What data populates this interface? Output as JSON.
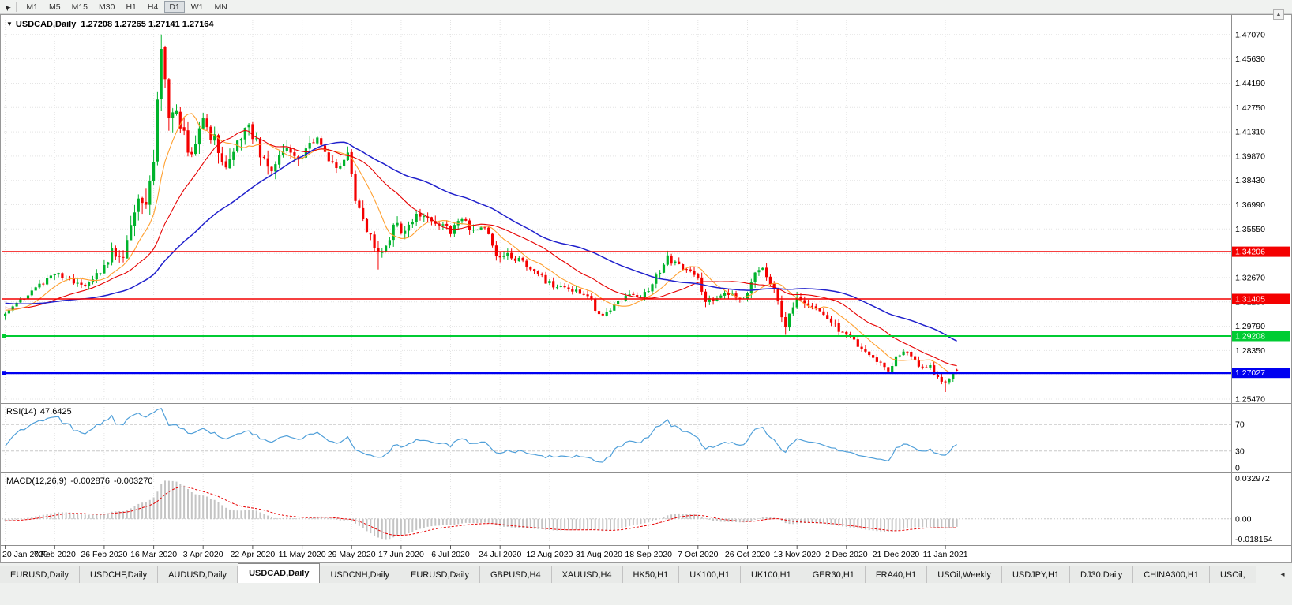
{
  "icons": {
    "cursor_arrow": "➤",
    "scroll_up": "▲",
    "tab_scroll": "◂",
    "title_marker": "▼"
  },
  "colors": {
    "bull": "#00b32c",
    "bear": "#f40000",
    "rsi_line": "#4f9fd9",
    "macd_hist": "#c4c4c4",
    "macd_signal": "#e60000"
  },
  "toolbar": {
    "timeframes": [
      "M1",
      "M5",
      "M15",
      "M30",
      "H1",
      "H4",
      "D1",
      "W1",
      "MN"
    ],
    "active_timeframe": "D1"
  },
  "window": {
    "title_symbol": "USDCAD,Daily",
    "ohlc_text": "1.27208 1.27265 1.27141 1.27164"
  },
  "chart_data": {
    "type": "candlestick",
    "symbol": "USDCAD",
    "timeframe": "Daily",
    "last_quote": {
      "open": "1.27208",
      "high": "1.27265",
      "low": "1.27141",
      "close": "1.27164"
    },
    "y_axis": {
      "max": 1.4795,
      "min": 1.2533,
      "tick_labels": [
        "1.47070",
        "1.45630",
        "1.44190",
        "1.42750",
        "1.41310",
        "1.39870",
        "1.38430",
        "1.36990",
        "1.35550",
        "1.34110",
        "1.32670",
        "1.31230",
        "1.29790",
        "1.28350",
        "1.26910",
        "1.25470"
      ]
    },
    "x_tick_labels": [
      "20 Jan 2020",
      "7 Feb 2020",
      "26 Feb 2020",
      "16 Mar 2020",
      "3 Apr 2020",
      "22 Apr 2020",
      "11 May 2020",
      "29 May 2020",
      "17 Jun 2020",
      "6 Jul 2020",
      "24 Jul 2020",
      "12 Aug 2020",
      "31 Aug 2020",
      "18 Sep 2020",
      "7 Oct 2020",
      "26 Oct 2020",
      "13 Nov 2020",
      "2 Dec 2020",
      "21 Dec 2020",
      "11 Jan 2021"
    ],
    "candles_per_tick": 13,
    "candle_count": 251,
    "horizontal_lines": [
      {
        "price": 1.34206,
        "label": "1.34206",
        "color": "#f40000",
        "width": 1.6,
        "handles": false
      },
      {
        "price": 1.31405,
        "label": "1.31405",
        "color": "#f40000",
        "width": 1.6,
        "handles": false
      },
      {
        "price": 1.29208,
        "label": "1.29208",
        "color": "#00cc33",
        "width": 2,
        "handles": true
      },
      {
        "price": 1.27027,
        "label": "1.27027",
        "color": "#0000f0",
        "width": 3,
        "handles": true
      }
    ],
    "moving_averages": [
      {
        "period": 10,
        "color": "#ff9f2e",
        "width": 1.1
      },
      {
        "period": 24,
        "color": "#e60000",
        "width": 1.1
      },
      {
        "period": 50,
        "color": "#2020cc",
        "width": 1.5
      }
    ],
    "anchors_format": [
      "candle_index",
      "close",
      "volatility",
      "high_override",
      "low_override"
    ],
    "anchors": [
      [
        0,
        1.3065,
        0.0035,
        0,
        0
      ],
      [
        5,
        1.315,
        0.003,
        0,
        0
      ],
      [
        9,
        1.323,
        0.003,
        0,
        0
      ],
      [
        13,
        1.329,
        0.0035,
        0,
        0
      ],
      [
        17,
        1.3255,
        0.003,
        0,
        0
      ],
      [
        22,
        1.3225,
        0.003,
        0,
        0
      ],
      [
        26,
        1.333,
        0.004,
        0,
        0
      ],
      [
        28,
        1.342,
        0.005,
        0,
        0
      ],
      [
        31,
        1.339,
        0.006,
        0,
        0
      ],
      [
        34,
        1.366,
        0.009,
        0,
        0
      ],
      [
        37,
        1.376,
        0.012,
        0,
        0
      ],
      [
        39,
        1.399,
        0.014,
        0,
        0
      ],
      [
        41,
        1.456,
        0.016,
        1.4668,
        0
      ],
      [
        43,
        1.428,
        0.014,
        0,
        0
      ],
      [
        46,
        1.418,
        0.011,
        0,
        0
      ],
      [
        48,
        1.4,
        0.01,
        0,
        0
      ],
      [
        52,
        1.42,
        0.009,
        0,
        0
      ],
      [
        55,
        1.408,
        0.008,
        0,
        0
      ],
      [
        58,
        1.391,
        0.008,
        0,
        0
      ],
      [
        61,
        1.406,
        0.008,
        0,
        0
      ],
      [
        63,
        1.419,
        0.007,
        0,
        0
      ],
      [
        66,
        1.406,
        0.007,
        0,
        0
      ],
      [
        70,
        1.389,
        0.007,
        0,
        0
      ],
      [
        73,
        1.405,
        0.006,
        0,
        0
      ],
      [
        76,
        1.397,
        0.006,
        0,
        0
      ],
      [
        79,
        1.402,
        0.005,
        0,
        0
      ],
      [
        82,
        1.409,
        0.005,
        0,
        0
      ],
      [
        85,
        1.395,
        0.005,
        0,
        0
      ],
      [
        88,
        1.393,
        0.005,
        0,
        0
      ],
      [
        90,
        1.399,
        0.005,
        0,
        0
      ],
      [
        92,
        1.375,
        0.006,
        0,
        0
      ],
      [
        95,
        1.356,
        0.006,
        0,
        0
      ],
      [
        98,
        1.342,
        0.006,
        0,
        1.3315
      ],
      [
        100,
        1.345,
        0.006,
        0,
        0
      ],
      [
        102,
        1.359,
        0.006,
        0,
        0
      ],
      [
        104,
        1.3545,
        0.005,
        0,
        0
      ],
      [
        107,
        1.361,
        0.005,
        0,
        0
      ],
      [
        110,
        1.365,
        0.004,
        0,
        0
      ],
      [
        113,
        1.358,
        0.004,
        0,
        0
      ],
      [
        117,
        1.3545,
        0.004,
        0,
        0
      ],
      [
        120,
        1.3605,
        0.004,
        0,
        0
      ],
      [
        123,
        1.3555,
        0.004,
        0,
        0
      ],
      [
        126,
        1.3575,
        0.004,
        0,
        0
      ],
      [
        129,
        1.341,
        0.004,
        0,
        0
      ],
      [
        132,
        1.3395,
        0.004,
        0,
        0
      ],
      [
        135,
        1.3365,
        0.0035,
        0,
        0
      ],
      [
        139,
        1.33,
        0.0035,
        0,
        0
      ],
      [
        143,
        1.323,
        0.0035,
        0,
        0
      ],
      [
        147,
        1.321,
        0.003,
        0,
        0
      ],
      [
        151,
        1.3185,
        0.003,
        0,
        0
      ],
      [
        154,
        1.313,
        0.003,
        0,
        0
      ],
      [
        156,
        1.3045,
        0.0035,
        0,
        1.2994
      ],
      [
        158,
        1.3065,
        0.0035,
        0,
        0
      ],
      [
        161,
        1.3135,
        0.003,
        0,
        0
      ],
      [
        165,
        1.3165,
        0.003,
        0,
        0
      ],
      [
        168,
        1.317,
        0.003,
        0,
        0
      ],
      [
        171,
        1.327,
        0.0035,
        0,
        0
      ],
      [
        174,
        1.3385,
        0.004,
        0,
        0
      ],
      [
        177,
        1.333,
        0.0035,
        0,
        0
      ],
      [
        179,
        1.3315,
        0.003,
        0,
        0
      ],
      [
        182,
        1.3255,
        0.0035,
        0,
        0
      ],
      [
        184,
        1.313,
        0.004,
        0,
        0
      ],
      [
        187,
        1.3145,
        0.003,
        0,
        0
      ],
      [
        190,
        1.318,
        0.003,
        0,
        0
      ],
      [
        193,
        1.3125,
        0.003,
        0,
        0
      ],
      [
        195,
        1.3185,
        0.0035,
        0,
        0
      ],
      [
        197,
        1.331,
        0.004,
        0,
        0
      ],
      [
        199,
        1.332,
        0.0035,
        0,
        0
      ],
      [
        202,
        1.3185,
        0.004,
        0,
        0
      ],
      [
        205,
        1.2985,
        0.0045,
        0,
        1.2928
      ],
      [
        208,
        1.3135,
        0.004,
        0,
        0
      ],
      [
        211,
        1.3085,
        0.003,
        0,
        0
      ],
      [
        214,
        1.307,
        0.003,
        0,
        0
      ],
      [
        217,
        1.3005,
        0.003,
        0,
        0
      ],
      [
        220,
        1.2935,
        0.003,
        0,
        0
      ],
      [
        223,
        1.289,
        0.003,
        0,
        0
      ],
      [
        226,
        1.2825,
        0.003,
        0,
        0
      ],
      [
        229,
        1.2775,
        0.003,
        0,
        0
      ],
      [
        232,
        1.2715,
        0.003,
        0,
        0
      ],
      [
        234,
        1.279,
        0.003,
        0,
        0
      ],
      [
        237,
        1.2835,
        0.003,
        0,
        0
      ],
      [
        240,
        1.2755,
        0.003,
        0,
        0
      ],
      [
        243,
        1.2735,
        0.0028,
        0,
        0
      ],
      [
        245,
        1.268,
        0.0028,
        0,
        0
      ],
      [
        247,
        1.264,
        0.0028,
        0,
        1.2589
      ],
      [
        249,
        1.2708,
        0.0025,
        0,
        0
      ],
      [
        250,
        1.2716,
        0.0022,
        0,
        0
      ]
    ],
    "rsi": {
      "label": "RSI(14)",
      "value": "47.6425",
      "levels": [
        "70",
        "30",
        "0"
      ]
    },
    "macd": {
      "label": "MACD(12,26,9)",
      "value_macd": "-0.002876",
      "value_signal": "-0.003270",
      "axis_max": "0.032972",
      "axis_zero": "0.00",
      "axis_min": "-0.018154"
    }
  },
  "tabs": {
    "active_index": 3,
    "items": [
      "EURUSD,Daily",
      "USDCHF,Daily",
      "AUDUSD,Daily",
      "USDCAD,Daily",
      "USDCNH,Daily",
      "EURUSD,Daily",
      "GBPUSD,H4",
      "XAUUSD,H4",
      "HK50,H1",
      "UK100,H1",
      "UK100,H1",
      "GER30,H1",
      "FRA40,H1",
      "USOil,Weekly",
      "USDJPY,H1",
      "DJ30,Daily",
      "CHINA300,H1",
      "USOil,"
    ]
  }
}
